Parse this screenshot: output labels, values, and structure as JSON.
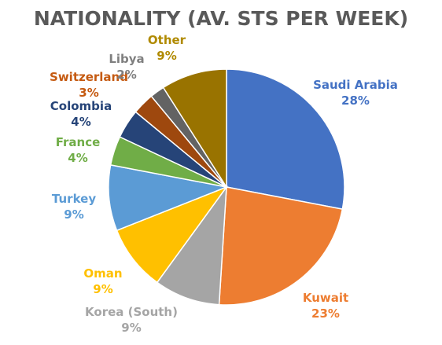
{
  "chart_data": {
    "type": "pie",
    "title": "NATIONALITY (AV. STS PER WEEK)",
    "slices": [
      {
        "label": "Saudi Arabia",
        "value": 28,
        "value_label": "28%",
        "color": "#4472C4"
      },
      {
        "label": "Kuwait",
        "value": 23,
        "value_label": "23%",
        "color": "#ED7D31"
      },
      {
        "label": "Korea (South)",
        "value": 9,
        "value_label": "9%",
        "color": "#A5A5A5"
      },
      {
        "label": "Oman",
        "value": 9,
        "value_label": "9%",
        "color": "#FFC000"
      },
      {
        "label": "Turkey",
        "value": 9,
        "value_label": "9%",
        "color": "#5B9BD5"
      },
      {
        "label": "France",
        "value": 4,
        "value_label": "4%",
        "color": "#70AD47"
      },
      {
        "label": "Colombia",
        "value": 4,
        "value_label": "4%",
        "color": "#264478"
      },
      {
        "label": "Switzerland",
        "value": 3,
        "value_label": "3%",
        "color": "#9E480E"
      },
      {
        "label": "Libya",
        "value": 2,
        "value_label": "2%",
        "color": "#636363"
      },
      {
        "label": "Other",
        "value": 9,
        "value_label": "9%",
        "color": "#997300"
      }
    ],
    "label_colors": {
      "Saudi Arabia": "#4472C4",
      "Kuwait": "#ED7D31",
      "Korea (South)": "#A5A5A5",
      "Oman": "#FFC000",
      "Turkey": "#5B9BD5",
      "France": "#70AD47",
      "Colombia": "#264478",
      "Switzerland": "#C55A11",
      "Libya": "#7F7F7F",
      "Other": "#B08A00"
    }
  }
}
